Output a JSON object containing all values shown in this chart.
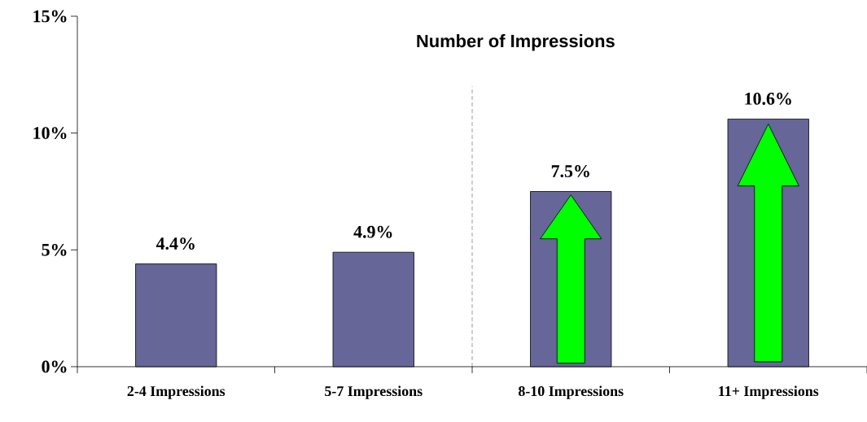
{
  "chart_data": {
    "type": "bar",
    "title": "Number of Impressions",
    "categories": [
      "2-4 Impressions",
      "5-7 Impressions",
      "8-10 Impressions",
      "11+ Impressions"
    ],
    "values": [
      4.4,
      4.9,
      7.5,
      10.6
    ],
    "value_labels": [
      "4.4%",
      "4.9%",
      "7.5%",
      "10.6%"
    ],
    "color": "#666699",
    "ylim": [
      0,
      15
    ],
    "yticks": [
      {
        "value": 0,
        "label": "0%"
      },
      {
        "value": 5,
        "label": "5%"
      },
      {
        "value": 10,
        "label": "10%"
      },
      {
        "value": 15,
        "label": "15%"
      }
    ],
    "grid": false
  }
}
